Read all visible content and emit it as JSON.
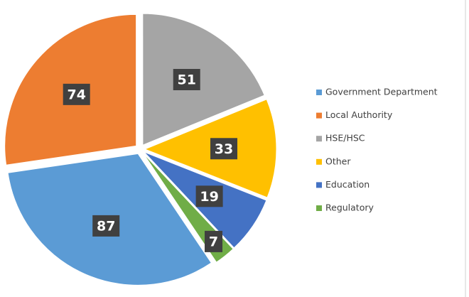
{
  "chart_data": {
    "type": "pie",
    "categories": [
      "Government Department",
      "Local Authority",
      "HSE/HSC",
      "Other",
      "Education",
      "Regulatory"
    ],
    "values": [
      87,
      74,
      51,
      33,
      19,
      7
    ],
    "colors": [
      "#5b9bd5",
      "#ed7d31",
      "#a5a5a5",
      "#ffc000",
      "#4472c4",
      "#70ad47"
    ],
    "legend": "right"
  }
}
